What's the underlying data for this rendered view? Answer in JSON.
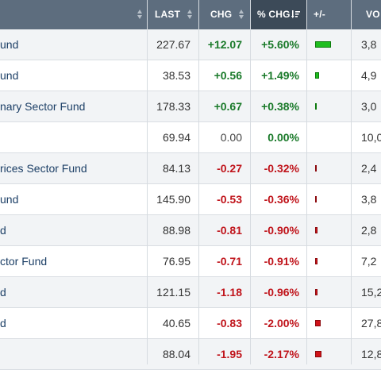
{
  "columns": {
    "last": "LAST",
    "chg": "CHG",
    "pct_chg": "% CHG",
    "plus_minus": "+/-",
    "volume": "VO"
  },
  "rows": [
    {
      "name": "und",
      "last": "227.67",
      "chg": "+12.07",
      "pct": "+5.60%",
      "dir": "up",
      "bar_pct": 5.6,
      "volume": "3,8"
    },
    {
      "name": "und",
      "last": "38.53",
      "chg": "+0.56",
      "pct": "+1.49%",
      "dir": "up",
      "bar_pct": 1.49,
      "volume": "4,9"
    },
    {
      "name": "nary Sector Fund",
      "last": "178.33",
      "chg": "+0.67",
      "pct": "+0.38%",
      "dir": "up",
      "bar_pct": 0.38,
      "volume": "3,0"
    },
    {
      "name": "",
      "last": "69.94",
      "chg": "0.00",
      "pct": "0.00%",
      "dir": "zero",
      "bar_pct": 0,
      "volume": "10,0"
    },
    {
      "name": "rices Sector Fund",
      "last": "84.13",
      "chg": "-0.27",
      "pct": "-0.32%",
      "dir": "down",
      "bar_pct": 0.32,
      "volume": "2,4"
    },
    {
      "name": "und",
      "last": "145.90",
      "chg": "-0.53",
      "pct": "-0.36%",
      "dir": "down",
      "bar_pct": 0.36,
      "volume": "3,8"
    },
    {
      "name": "d",
      "last": "88.98",
      "chg": "-0.81",
      "pct": "-0.90%",
      "dir": "down",
      "bar_pct": 0.9,
      "volume": "2,8"
    },
    {
      "name": "ctor Fund",
      "last": "76.95",
      "chg": "-0.71",
      "pct": "-0.91%",
      "dir": "down",
      "bar_pct": 0.91,
      "volume": "7,2"
    },
    {
      "name": "d",
      "last": "121.15",
      "chg": "-1.18",
      "pct": "-0.96%",
      "dir": "down",
      "bar_pct": 0.96,
      "volume": "15,2"
    },
    {
      "name": "d",
      "last": "40.65",
      "chg": "-0.83",
      "pct": "-2.00%",
      "dir": "down",
      "bar_pct": 2.0,
      "volume": "27,8"
    },
    {
      "name": "",
      "last": "88.04",
      "chg": "-1.95",
      "pct": "-2.17%",
      "dir": "down",
      "bar_pct": 2.17,
      "volume": "12,8"
    }
  ],
  "colors": {
    "header_bg": "#5d6d7e",
    "header_active_bg": "#3c4a58",
    "positive": "#1a7a2a",
    "negative": "#c0141b",
    "name_link": "#1c3f66",
    "bar_up": "#1fbd1f",
    "bar_down": "#d01218"
  },
  "icons": {
    "sort": "sort-arrows-icon",
    "sort_active": "sort-descending-icon"
  }
}
